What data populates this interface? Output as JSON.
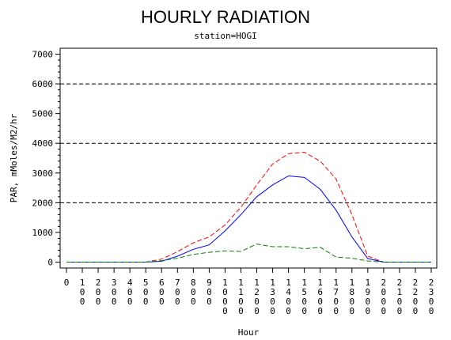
{
  "chart_data": {
    "type": "line",
    "title": "HOURLY RADIATION",
    "subtitle": "station=HOGI",
    "xlabel": "Hour",
    "ylabel": "PAR, mMoles/M2/hr",
    "x": [
      "0",
      "100",
      "200",
      "300",
      "400",
      "500",
      "600",
      "700",
      "800",
      "900",
      "1000",
      "1100",
      "1200",
      "1300",
      "1400",
      "1500",
      "1600",
      "1700",
      "1800",
      "1900",
      "2000",
      "2100",
      "2200",
      "2300"
    ],
    "yticks": [
      0,
      1000,
      2000,
      3000,
      4000,
      5000,
      6000,
      7000
    ],
    "ytick_labels": [
      "0",
      "1000",
      "2000",
      "3000",
      "4000",
      "5000",
      "6000",
      "7000"
    ],
    "ylim": [
      -200,
      7200
    ],
    "reference_lines": [
      2000,
      4000,
      6000
    ],
    "series": [
      {
        "style": "dashed",
        "color": "#ff0000",
        "values": [
          0,
          0,
          0,
          0,
          0,
          0,
          100,
          350,
          650,
          850,
          1250,
          1850,
          2600,
          3300,
          3650,
          3700,
          3400,
          2800,
          1600,
          200,
          0,
          0,
          0,
          0
        ]
      },
      {
        "style": "solid",
        "color": "#0000ff",
        "values": [
          0,
          0,
          0,
          0,
          0,
          0,
          30,
          200,
          430,
          580,
          1050,
          1600,
          2200,
          2600,
          2900,
          2850,
          2450,
          1750,
          850,
          120,
          0,
          0,
          0,
          0
        ]
      },
      {
        "style": "dashed",
        "color": "#008000",
        "values": [
          0,
          0,
          0,
          0,
          0,
          0,
          50,
          130,
          260,
          330,
          380,
          360,
          610,
          520,
          520,
          450,
          500,
          170,
          130,
          40,
          0,
          0,
          0,
          0
        ]
      }
    ]
  }
}
